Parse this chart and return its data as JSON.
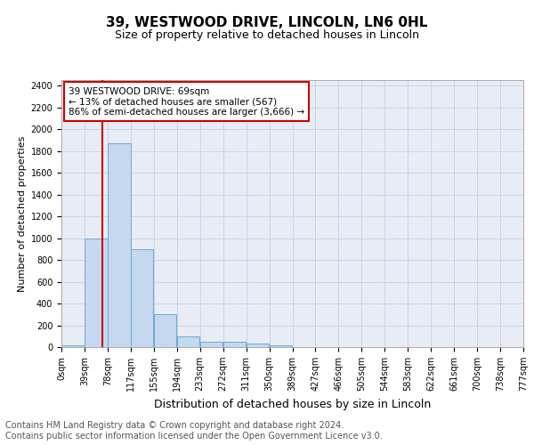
{
  "title": "39, WESTWOOD DRIVE, LINCOLN, LN6 0HL",
  "subtitle": "Size of property relative to detached houses in Lincoln",
  "xlabel": "Distribution of detached houses by size in Lincoln",
  "ylabel": "Number of detached properties",
  "footer_line1": "Contains HM Land Registry data © Crown copyright and database right 2024.",
  "footer_line2": "Contains public sector information licensed under the Open Government Licence v3.0.",
  "bin_labels": [
    "0sqm",
    "39sqm",
    "78sqm",
    "117sqm",
    "155sqm",
    "194sqm",
    "233sqm",
    "272sqm",
    "311sqm",
    "350sqm",
    "389sqm",
    "427sqm",
    "466sqm",
    "505sqm",
    "544sqm",
    "583sqm",
    "622sqm",
    "661sqm",
    "700sqm",
    "738sqm",
    "777sqm"
  ],
  "bar_values": [
    20,
    1000,
    1870,
    900,
    300,
    100,
    50,
    50,
    30,
    20,
    0,
    0,
    0,
    0,
    0,
    0,
    0,
    0,
    0,
    0
  ],
  "bar_color": "#c5d8f0",
  "bar_edge_color": "#6baad4",
  "property_line_x": 69,
  "property_line_color": "#cc0000",
  "ylim": [
    0,
    2450
  ],
  "yticks": [
    0,
    200,
    400,
    600,
    800,
    1000,
    1200,
    1400,
    1600,
    1800,
    2000,
    2200,
    2400
  ],
  "annotation_text": "39 WESTWOOD DRIVE: 69sqm\n← 13% of detached houses are smaller (567)\n86% of semi-detached houses are larger (3,666) →",
  "annotation_box_color": "#cc0000",
  "bin_width": 39,
  "grid_color": "#c8d4e8",
  "bg_color": "#e8edf5",
  "title_fontsize": 11,
  "subtitle_fontsize": 9,
  "ylabel_fontsize": 8,
  "xlabel_fontsize": 9,
  "tick_fontsize": 7,
  "annot_fontsize": 7.5,
  "footer_fontsize": 7
}
